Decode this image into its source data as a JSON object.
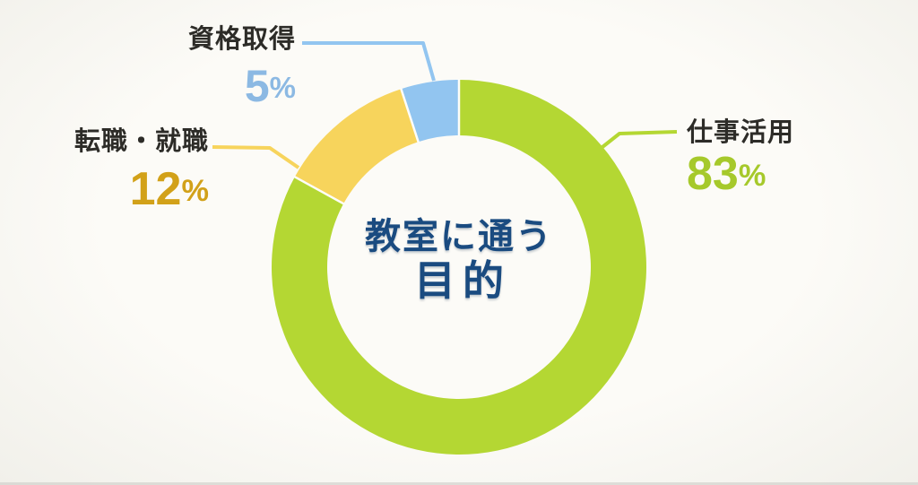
{
  "chart_data": {
    "type": "pie",
    "variant": "donut",
    "center_title_line1": "教室に通う",
    "center_title_line2": "目的",
    "center_text_color": "#1a4b80",
    "legend_position": "callouts",
    "grid": false,
    "series": [
      {
        "label": "仕事活用",
        "value": 83,
        "unit": "%",
        "color": "#b4d733",
        "value_color": "#a6c92b",
        "label_color": "#2d2c28"
      },
      {
        "label": "転職・就職",
        "value": 12,
        "unit": "%",
        "color": "#f7d45c",
        "value_color": "#d2a119",
        "label_color": "#2d2c28"
      },
      {
        "label": "資格取得",
        "value": 5,
        "unit": "%",
        "color": "#92c5f0",
        "value_color": "#8cb9e3",
        "label_color": "#2d2c28"
      }
    ],
    "separator_color": "#fdfdfa",
    "hole_color": "#fcfbf7"
  }
}
